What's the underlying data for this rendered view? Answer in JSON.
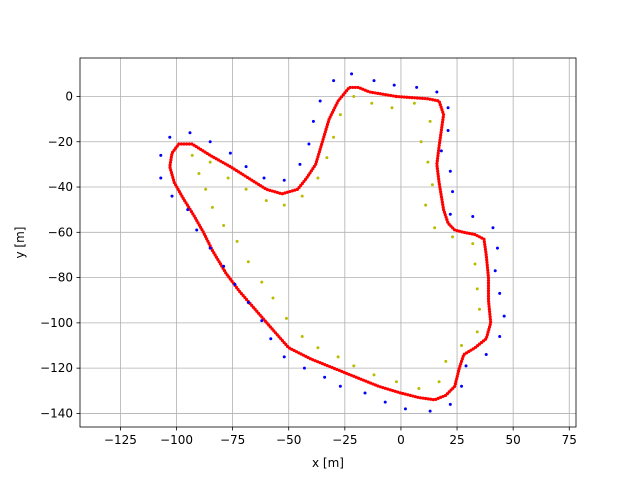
{
  "chart_data": {
    "type": "scatter",
    "title": "",
    "xlabel": "x [m]",
    "ylabel": "y [m]",
    "xlim": [
      -143,
      78
    ],
    "ylim": [
      -146,
      17
    ],
    "x_ticks": [
      -125,
      -100,
      -75,
      -50,
      -25,
      0,
      25,
      50,
      75
    ],
    "y_ticks": [
      0,
      -20,
      -40,
      -60,
      -80,
      -100,
      -120,
      -140
    ],
    "x_tick_labels": [
      "−125",
      "−100",
      "−75",
      "−50",
      "−25",
      "0",
      "25",
      "50",
      "75"
    ],
    "y_tick_labels": [
      "0",
      "−20",
      "−40",
      "−60",
      "−80",
      "−100",
      "−120",
      "−140"
    ],
    "grid": true,
    "legend": "none",
    "series": [
      {
        "color": "#ff0000",
        "marker_size": 1.6,
        "style": "dense-path",
        "points": [
          [
            -2,
            0
          ],
          [
            5,
            -0.5
          ],
          [
            12,
            -1
          ],
          [
            17,
            -2
          ],
          [
            19,
            -8
          ],
          [
            18,
            -15
          ],
          [
            17,
            -22
          ],
          [
            16,
            -30
          ],
          [
            17,
            -38
          ],
          [
            18,
            -44
          ],
          [
            19,
            -50
          ],
          [
            21,
            -56
          ],
          [
            24,
            -59
          ],
          [
            28,
            -60
          ],
          [
            33,
            -61
          ],
          [
            37,
            -63
          ],
          [
            38,
            -70
          ],
          [
            39,
            -80
          ],
          [
            39,
            -90
          ],
          [
            40,
            -100
          ],
          [
            38,
            -107
          ],
          [
            33,
            -111
          ],
          [
            28,
            -114
          ],
          [
            26,
            -120
          ],
          [
            24,
            -128
          ],
          [
            20,
            -132
          ],
          [
            15,
            -134
          ],
          [
            8,
            -133
          ],
          [
            0,
            -131
          ],
          [
            -10,
            -128
          ],
          [
            -20,
            -124
          ],
          [
            -30,
            -120
          ],
          [
            -40,
            -116
          ],
          [
            -50,
            -111
          ],
          [
            -58,
            -102
          ],
          [
            -65,
            -94
          ],
          [
            -72,
            -86
          ],
          [
            -78,
            -78
          ],
          [
            -84,
            -68
          ],
          [
            -88,
            -60
          ],
          [
            -92,
            -53
          ],
          [
            -97,
            -45
          ],
          [
            -101,
            -38
          ],
          [
            -103,
            -31
          ],
          [
            -102,
            -25
          ],
          [
            -99,
            -21
          ],
          [
            -93,
            -21
          ],
          [
            -85,
            -26
          ],
          [
            -76,
            -31
          ],
          [
            -68,
            -36
          ],
          [
            -60,
            -41
          ],
          [
            -53,
            -43
          ],
          [
            -46,
            -41
          ],
          [
            -42,
            -36
          ],
          [
            -38,
            -30
          ],
          [
            -35,
            -20
          ],
          [
            -32,
            -10
          ],
          [
            -28,
            -2
          ],
          [
            -23,
            4
          ],
          [
            -19,
            4
          ],
          [
            -14,
            2
          ],
          [
            -8,
            1
          ],
          [
            -2,
            0
          ]
        ]
      },
      {
        "color": "#0000ff",
        "marker_size": 1.5,
        "style": "sparse",
        "points": [
          [
            -30,
            7
          ],
          [
            -22,
            10
          ],
          [
            -12,
            7
          ],
          [
            -3,
            5
          ],
          [
            7,
            4
          ],
          [
            16,
            2
          ],
          [
            21,
            -5
          ],
          [
            21,
            -15
          ],
          [
            18,
            -24
          ],
          [
            22,
            -33
          ],
          [
            23,
            -42
          ],
          [
            22,
            -52
          ],
          [
            32,
            -53
          ],
          [
            41,
            -58
          ],
          [
            43,
            -67
          ],
          [
            42,
            -77
          ],
          [
            44,
            -87
          ],
          [
            46,
            -97
          ],
          [
            44,
            -106
          ],
          [
            38,
            -114
          ],
          [
            29,
            -119
          ],
          [
            27,
            -128
          ],
          [
            22,
            -136
          ],
          [
            13,
            -139
          ],
          [
            2,
            -138
          ],
          [
            -7,
            -135
          ],
          [
            -16,
            -131
          ],
          [
            -27,
            -128
          ],
          [
            -34,
            -124
          ],
          [
            -43,
            -120
          ],
          [
            -52,
            -115
          ],
          [
            -58,
            -107
          ],
          [
            -62,
            -99
          ],
          [
            -68,
            -91
          ],
          [
            -74,
            -83
          ],
          [
            -79,
            -75
          ],
          [
            -85,
            -67
          ],
          [
            -91,
            -59
          ],
          [
            -95,
            -50
          ],
          [
            -102,
            -44
          ],
          [
            -107,
            -36
          ],
          [
            -107,
            -26
          ],
          [
            -103,
            -18
          ],
          [
            -94,
            -16
          ],
          [
            -85,
            -20
          ],
          [
            -76,
            -25
          ],
          [
            -69,
            -31
          ],
          [
            -61,
            -36
          ],
          [
            -52,
            -37
          ],
          [
            -45,
            -30
          ],
          [
            -41,
            -21
          ],
          [
            -39,
            -11
          ],
          [
            -36,
            -2
          ]
        ]
      },
      {
        "color": "#bbbb00",
        "marker_size": 1.5,
        "style": "sparse",
        "points": [
          [
            -27,
            -8
          ],
          [
            -21,
            0
          ],
          [
            -13,
            -3
          ],
          [
            -4,
            -5
          ],
          [
            6,
            -3
          ],
          [
            13,
            -11
          ],
          [
            9,
            -20
          ],
          [
            12,
            -29
          ],
          [
            14,
            -39
          ],
          [
            11,
            -48
          ],
          [
            15,
            -58
          ],
          [
            23,
            -62
          ],
          [
            32,
            -65
          ],
          [
            33,
            -74
          ],
          [
            34,
            -85
          ],
          [
            35,
            -94
          ],
          [
            34,
            -104
          ],
          [
            27,
            -110
          ],
          [
            20,
            -117
          ],
          [
            17,
            -126
          ],
          [
            8,
            -129
          ],
          [
            -2,
            -126
          ],
          [
            -12,
            -123
          ],
          [
            -21,
            -119
          ],
          [
            -28,
            -115
          ],
          [
            -37,
            -111
          ],
          [
            -44,
            -106
          ],
          [
            -51,
            -98
          ],
          [
            -57,
            -89
          ],
          [
            -62,
            -82
          ],
          [
            -68,
            -73
          ],
          [
            -73,
            -64
          ],
          [
            -79,
            -57
          ],
          [
            -84,
            -49
          ],
          [
            -87,
            -41
          ],
          [
            -90,
            -34
          ],
          [
            -93,
            -26
          ],
          [
            -85,
            -29
          ],
          [
            -77,
            -36
          ],
          [
            -69,
            -41
          ],
          [
            -60,
            -46
          ],
          [
            -52,
            -48
          ],
          [
            -44,
            -44
          ],
          [
            -37,
            -36
          ],
          [
            -33,
            -27
          ],
          [
            -30,
            -18
          ]
        ]
      }
    ]
  }
}
